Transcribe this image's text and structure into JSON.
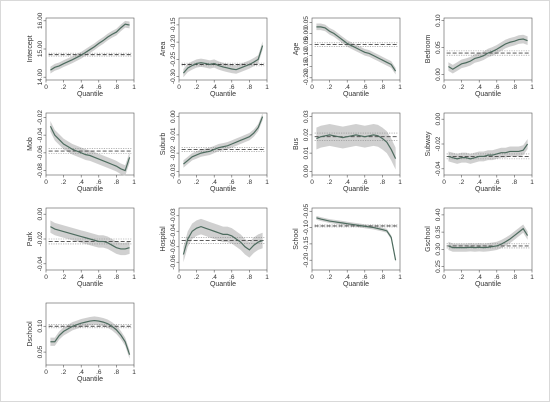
{
  "x_label": "Quantile",
  "x_ticks": [
    0,
    0.2,
    0.4,
    0.6,
    0.8,
    1
  ],
  "x_tick_labels": [
    "0",
    ".2",
    ".4",
    ".6",
    ".8",
    "1"
  ],
  "colors": {
    "line": "#4d6b5e",
    "band": "#c8c8c8",
    "ols": "#444444",
    "ols_ci": "#888888"
  },
  "chart_data": [
    {
      "type": "line",
      "ylabel": "Intercept",
      "ylim": [
        13.9,
        16.1
      ],
      "y_ticks": [
        14,
        15,
        16
      ],
      "y_tick_labels": [
        "14.00",
        "15.00",
        "16.00"
      ],
      "x": [
        0.05,
        0.1,
        0.15,
        0.2,
        0.25,
        0.3,
        0.35,
        0.4,
        0.45,
        0.5,
        0.55,
        0.6,
        0.65,
        0.7,
        0.75,
        0.8,
        0.85,
        0.9,
        0.95
      ],
      "values": [
        14.25,
        14.35,
        14.4,
        14.48,
        14.55,
        14.62,
        14.7,
        14.78,
        14.88,
        14.98,
        15.08,
        15.2,
        15.3,
        15.42,
        15.52,
        15.6,
        15.75,
        15.88,
        15.85
      ],
      "ci_half": 0.12,
      "ols": 14.8,
      "ols_ci_half": 0.05
    },
    {
      "type": "line",
      "ylabel": "Area",
      "ylim": [
        -0.31,
        -0.13
      ],
      "y_ticks": [
        -0.3,
        -0.25,
        -0.2,
        -0.15
      ],
      "y_tick_labels": [
        "-0.30",
        "-0.25",
        "-0.20",
        "-0.15"
      ],
      "x": [
        0.05,
        0.1,
        0.15,
        0.2,
        0.25,
        0.3,
        0.35,
        0.4,
        0.45,
        0.5,
        0.55,
        0.6,
        0.65,
        0.7,
        0.75,
        0.8,
        0.85,
        0.9,
        0.95
      ],
      "values": [
        -0.29,
        -0.275,
        -0.268,
        -0.262,
        -0.26,
        -0.262,
        -0.265,
        -0.262,
        -0.268,
        -0.272,
        -0.275,
        -0.278,
        -0.28,
        -0.275,
        -0.27,
        -0.265,
        -0.258,
        -0.25,
        -0.21
      ],
      "ci_half": 0.012,
      "ols": -0.265,
      "ols_ci_half": 0.004
    },
    {
      "type": "line",
      "ylabel": "Age",
      "ylim": [
        -0.21,
        0.07
      ],
      "y_ticks": [
        -0.2,
        -0.15,
        -0.1,
        -0.05,
        0,
        0.05
      ],
      "y_tick_labels": [
        "-0.20",
        "-0.15",
        "-0.10",
        "-0.05",
        "0.00",
        "0.05"
      ],
      "x": [
        0.05,
        0.1,
        0.15,
        0.2,
        0.25,
        0.3,
        0.35,
        0.4,
        0.45,
        0.5,
        0.55,
        0.6,
        0.65,
        0.7,
        0.75,
        0.8,
        0.85,
        0.9,
        0.95
      ],
      "values": [
        0.03,
        0.03,
        0.025,
        0.01,
        0,
        -0.015,
        -0.03,
        -0.045,
        -0.055,
        -0.065,
        -0.075,
        -0.085,
        -0.09,
        -0.1,
        -0.11,
        -0.12,
        -0.13,
        -0.14,
        -0.17
      ],
      "ci_half": 0.015,
      "ols": -0.05,
      "ols_ci_half": 0.008
    },
    {
      "type": "line",
      "ylabel": "Bedroom",
      "ylim": [
        -0.01,
        0.105
      ],
      "y_ticks": [
        0,
        0.05,
        0.1
      ],
      "y_tick_labels": [
        "0.00",
        "0.05",
        "0.10"
      ],
      "x": [
        0.05,
        0.1,
        0.15,
        0.2,
        0.25,
        0.3,
        0.35,
        0.4,
        0.45,
        0.5,
        0.55,
        0.6,
        0.65,
        0.7,
        0.75,
        0.8,
        0.85,
        0.9,
        0.95
      ],
      "values": [
        0.015,
        0.01,
        0.015,
        0.02,
        0.022,
        0.025,
        0.03,
        0.032,
        0.035,
        0.04,
        0.043,
        0.047,
        0.052,
        0.057,
        0.06,
        0.062,
        0.065,
        0.066,
        0.063
      ],
      "ci_half": 0.008,
      "ols": 0.04,
      "ols_ci_half": 0.004
    },
    {
      "type": "line",
      "ylabel": "Mob",
      "ylim": [
        -0.085,
        -0.015
      ],
      "y_ticks": [
        -0.08,
        -0.06,
        -0.04,
        -0.02
      ],
      "y_tick_labels": [
        "-0.08",
        "-0.06",
        "-0.04",
        "-0.02"
      ],
      "x": [
        0.05,
        0.1,
        0.15,
        0.2,
        0.25,
        0.3,
        0.35,
        0.4,
        0.45,
        0.5,
        0.55,
        0.6,
        0.65,
        0.7,
        0.75,
        0.8,
        0.85,
        0.9,
        0.95
      ],
      "values": [
        -0.03,
        -0.04,
        -0.045,
        -0.05,
        -0.053,
        -0.056,
        -0.058,
        -0.06,
        -0.062,
        -0.063,
        -0.065,
        -0.067,
        -0.069,
        -0.071,
        -0.073,
        -0.075,
        -0.078,
        -0.08,
        -0.065
      ],
      "ci_half": 0.006,
      "ols": -0.058,
      "ols_ci_half": 0.003
    },
    {
      "type": "line",
      "ylabel": "Suburb",
      "ylim": [
        -0.032,
        0.002
      ],
      "y_ticks": [
        -0.03,
        -0.02,
        -0.01,
        0
      ],
      "y_tick_labels": [
        "-0.03",
        "-0.02",
        "-0.01",
        "0.00"
      ],
      "x": [
        0.05,
        0.1,
        0.15,
        0.2,
        0.25,
        0.3,
        0.35,
        0.4,
        0.45,
        0.5,
        0.55,
        0.6,
        0.65,
        0.7,
        0.75,
        0.8,
        0.85,
        0.9,
        0.95
      ],
      "values": [
        -0.026,
        -0.024,
        -0.022,
        -0.021,
        -0.02,
        -0.0195,
        -0.019,
        -0.018,
        -0.017,
        -0.0165,
        -0.016,
        -0.015,
        -0.014,
        -0.013,
        -0.012,
        -0.011,
        -0.009,
        -0.006,
        0
      ],
      "ci_half": 0.002,
      "ols": -0.018,
      "ols_ci_half": 0.001
    },
    {
      "type": "line",
      "ylabel": "Bus",
      "ylim": [
        -0.002,
        0.032
      ],
      "y_ticks": [
        0,
        0.01,
        0.02,
        0.03
      ],
      "y_tick_labels": [
        "0.00",
        "0.01",
        "0.02",
        "0.03"
      ],
      "x": [
        0.05,
        0.1,
        0.15,
        0.2,
        0.25,
        0.3,
        0.35,
        0.4,
        0.45,
        0.5,
        0.55,
        0.6,
        0.65,
        0.7,
        0.75,
        0.8,
        0.85,
        0.9,
        0.95
      ],
      "values": [
        0.018,
        0.019,
        0.0195,
        0.02,
        0.0195,
        0.019,
        0.0185,
        0.019,
        0.0195,
        0.02,
        0.0195,
        0.019,
        0.0195,
        0.02,
        0.0195,
        0.018,
        0.016,
        0.012,
        0.007
      ],
      "ci_half": 0.006,
      "ols": 0.019,
      "ols_ci_half": 0.002
    },
    {
      "type": "line",
      "ylabel": "Subway",
      "ylim": [
        -0.045,
        0.005
      ],
      "y_ticks": [
        -0.04,
        -0.02,
        0
      ],
      "y_tick_labels": [
        "-0.04",
        "-0.02",
        "0.00"
      ],
      "x": [
        0.05,
        0.1,
        0.15,
        0.2,
        0.25,
        0.3,
        0.35,
        0.4,
        0.45,
        0.5,
        0.55,
        0.6,
        0.65,
        0.7,
        0.75,
        0.8,
        0.85,
        0.9,
        0.95
      ],
      "values": [
        -0.03,
        -0.031,
        -0.032,
        -0.031,
        -0.031,
        -0.032,
        -0.031,
        -0.03,
        -0.03,
        -0.029,
        -0.029,
        -0.028,
        -0.027,
        -0.027,
        -0.026,
        -0.026,
        -0.026,
        -0.025,
        -0.02
      ],
      "ci_half": 0.004,
      "ols": -0.03,
      "ols_ci_half": 0.002
    },
    {
      "type": "line",
      "ylabel": "Park",
      "ylim": [
        -0.045,
        0.005
      ],
      "y_ticks": [
        -0.04,
        -0.02,
        0
      ],
      "y_tick_labels": [
        "-0.04",
        "-0.02",
        "0.00"
      ],
      "x": [
        0.05,
        0.1,
        0.15,
        0.2,
        0.25,
        0.3,
        0.35,
        0.4,
        0.45,
        0.5,
        0.55,
        0.6,
        0.65,
        0.7,
        0.75,
        0.8,
        0.85,
        0.9,
        0.95
      ],
      "values": [
        -0.01,
        -0.012,
        -0.013,
        -0.014,
        -0.015,
        -0.016,
        -0.017,
        -0.018,
        -0.019,
        -0.02,
        -0.021,
        -0.022,
        -0.022,
        -0.023,
        -0.025,
        -0.027,
        -0.028,
        -0.028,
        -0.027
      ],
      "ci_half": 0.005,
      "ols": -0.022,
      "ols_ci_half": 0.002
    },
    {
      "type": "line",
      "ylabel": "Hospital",
      "ylim": [
        -0.065,
        -0.025
      ],
      "y_ticks": [
        -0.06,
        -0.05,
        -0.04,
        -0.03
      ],
      "y_tick_labels": [
        "-0.06",
        "-0.05",
        "-0.04",
        "-0.03"
      ],
      "x": [
        0.05,
        0.1,
        0.15,
        0.2,
        0.25,
        0.3,
        0.35,
        0.4,
        0.45,
        0.5,
        0.55,
        0.6,
        0.65,
        0.7,
        0.75,
        0.8,
        0.85,
        0.9,
        0.95
      ],
      "values": [
        -0.055,
        -0.045,
        -0.04,
        -0.038,
        -0.037,
        -0.038,
        -0.039,
        -0.04,
        -0.041,
        -0.042,
        -0.042,
        -0.043,
        -0.045,
        -0.047,
        -0.05,
        -0.052,
        -0.049,
        -0.047,
        -0.046
      ],
      "ci_half": 0.005,
      "ols": -0.046,
      "ols_ci_half": 0.002
    },
    {
      "type": "line",
      "ylabel": "School",
      "ylim": [
        -0.23,
        -0.04
      ],
      "y_ticks": [
        -0.2,
        -0.15,
        -0.1,
        -0.05
      ],
      "y_tick_labels": [
        "-0.20",
        "-0.15",
        "-0.10",
        "-0.05"
      ],
      "x": [
        0.05,
        0.1,
        0.15,
        0.2,
        0.25,
        0.3,
        0.35,
        0.4,
        0.45,
        0.5,
        0.55,
        0.6,
        0.65,
        0.7,
        0.75,
        0.8,
        0.85,
        0.9,
        0.95
      ],
      "values": [
        -0.07,
        -0.074,
        -0.077,
        -0.08,
        -0.082,
        -0.084,
        -0.086,
        -0.088,
        -0.09,
        -0.092,
        -0.094,
        -0.096,
        -0.098,
        -0.1,
        -0.103,
        -0.106,
        -0.11,
        -0.13,
        -0.2
      ],
      "ci_half": 0.006,
      "ols": -0.095,
      "ols_ci_half": 0.003
    },
    {
      "type": "line",
      "ylabel": "Gschool",
      "ylim": [
        0.24,
        0.42
      ],
      "y_ticks": [
        0.25,
        0.3,
        0.35,
        0.4
      ],
      "y_tick_labels": [
        "0.25",
        "0.30",
        "0.35",
        "0.40"
      ],
      "x": [
        0.05,
        0.1,
        0.15,
        0.2,
        0.25,
        0.3,
        0.35,
        0.4,
        0.45,
        0.5,
        0.55,
        0.6,
        0.65,
        0.7,
        0.75,
        0.8,
        0.85,
        0.9,
        0.95
      ],
      "values": [
        0.31,
        0.305,
        0.305,
        0.305,
        0.305,
        0.306,
        0.305,
        0.306,
        0.305,
        0.306,
        0.308,
        0.31,
        0.315,
        0.322,
        0.33,
        0.34,
        0.35,
        0.36,
        0.34
      ],
      "ci_half": 0.012,
      "ols": 0.31,
      "ols_ci_half": 0.006
    },
    {
      "type": "line",
      "ylabel": "Dschool",
      "ylim": [
        0.025,
        0.145
      ],
      "y_ticks": [
        0.05,
        0.1
      ],
      "y_tick_labels": [
        "0.05",
        "0.10"
      ],
      "x": [
        0.05,
        0.1,
        0.15,
        0.2,
        0.25,
        0.3,
        0.35,
        0.4,
        0.45,
        0.5,
        0.55,
        0.6,
        0.65,
        0.7,
        0.75,
        0.8,
        0.85,
        0.9,
        0.95
      ],
      "values": [
        0.07,
        0.07,
        0.082,
        0.09,
        0.095,
        0.1,
        0.103,
        0.106,
        0.108,
        0.11,
        0.111,
        0.11,
        0.108,
        0.105,
        0.1,
        0.093,
        0.083,
        0.07,
        0.045
      ],
      "ci_half": 0.008,
      "ols": 0.1,
      "ols_ci_half": 0.003
    }
  ]
}
